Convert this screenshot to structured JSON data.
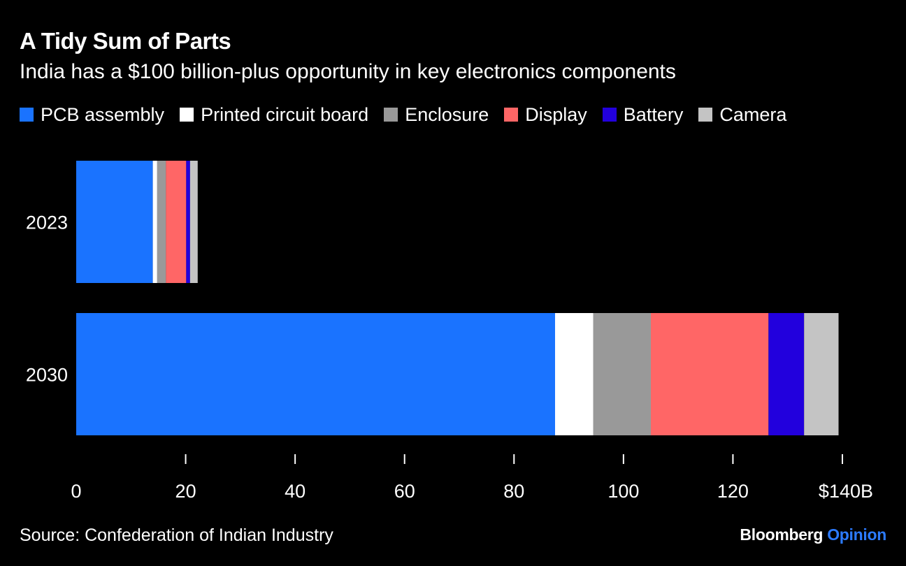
{
  "header": {
    "title": "A Tidy Sum of Parts",
    "subtitle": "India has a $100 billion-plus opportunity in key electronics components"
  },
  "legend": [
    {
      "label": "PCB assembly",
      "color": "#1a73ff"
    },
    {
      "label": "Printed circuit board",
      "color": "#ffffff"
    },
    {
      "label": "Enclosure",
      "color": "#999999"
    },
    {
      "label": "Display",
      "color": "#ff6666"
    },
    {
      "label": "Battery",
      "color": "#2200dd"
    },
    {
      "label": "Camera",
      "color": "#c4c4c4"
    }
  ],
  "footer": {
    "source": "Source: Confederation of Indian Industry",
    "brand_primary": "Bloomberg",
    "brand_secondary": "Opinion",
    "brand_secondary_color": "#2c7bff"
  },
  "chart_data": {
    "type": "bar",
    "orientation": "horizontal",
    "stacked": true,
    "categories": [
      "2023",
      "2030"
    ],
    "series": [
      {
        "name": "PCB assembly",
        "color": "#1a73ff",
        "values": [
          14,
          87.5
        ]
      },
      {
        "name": "Printed circuit board",
        "color": "#ffffff",
        "values": [
          0.8,
          7
        ]
      },
      {
        "name": "Enclosure",
        "color": "#999999",
        "values": [
          1.6,
          10.5
        ]
      },
      {
        "name": "Display",
        "color": "#ff6666",
        "values": [
          3.7,
          21.5
        ]
      },
      {
        "name": "Battery",
        "color": "#2200dd",
        "values": [
          0.7,
          6.5
        ]
      },
      {
        "name": "Camera",
        "color": "#c4c4c4",
        "values": [
          1.4,
          6.3
        ]
      }
    ],
    "xlim": [
      0,
      140
    ],
    "xticks": [
      0,
      20,
      40,
      60,
      80,
      100,
      120,
      140
    ],
    "xtick_labels": [
      "0",
      "20",
      "40",
      "60",
      "80",
      "100",
      "120",
      "$140B"
    ],
    "grid": false,
    "legend_position": "top"
  }
}
